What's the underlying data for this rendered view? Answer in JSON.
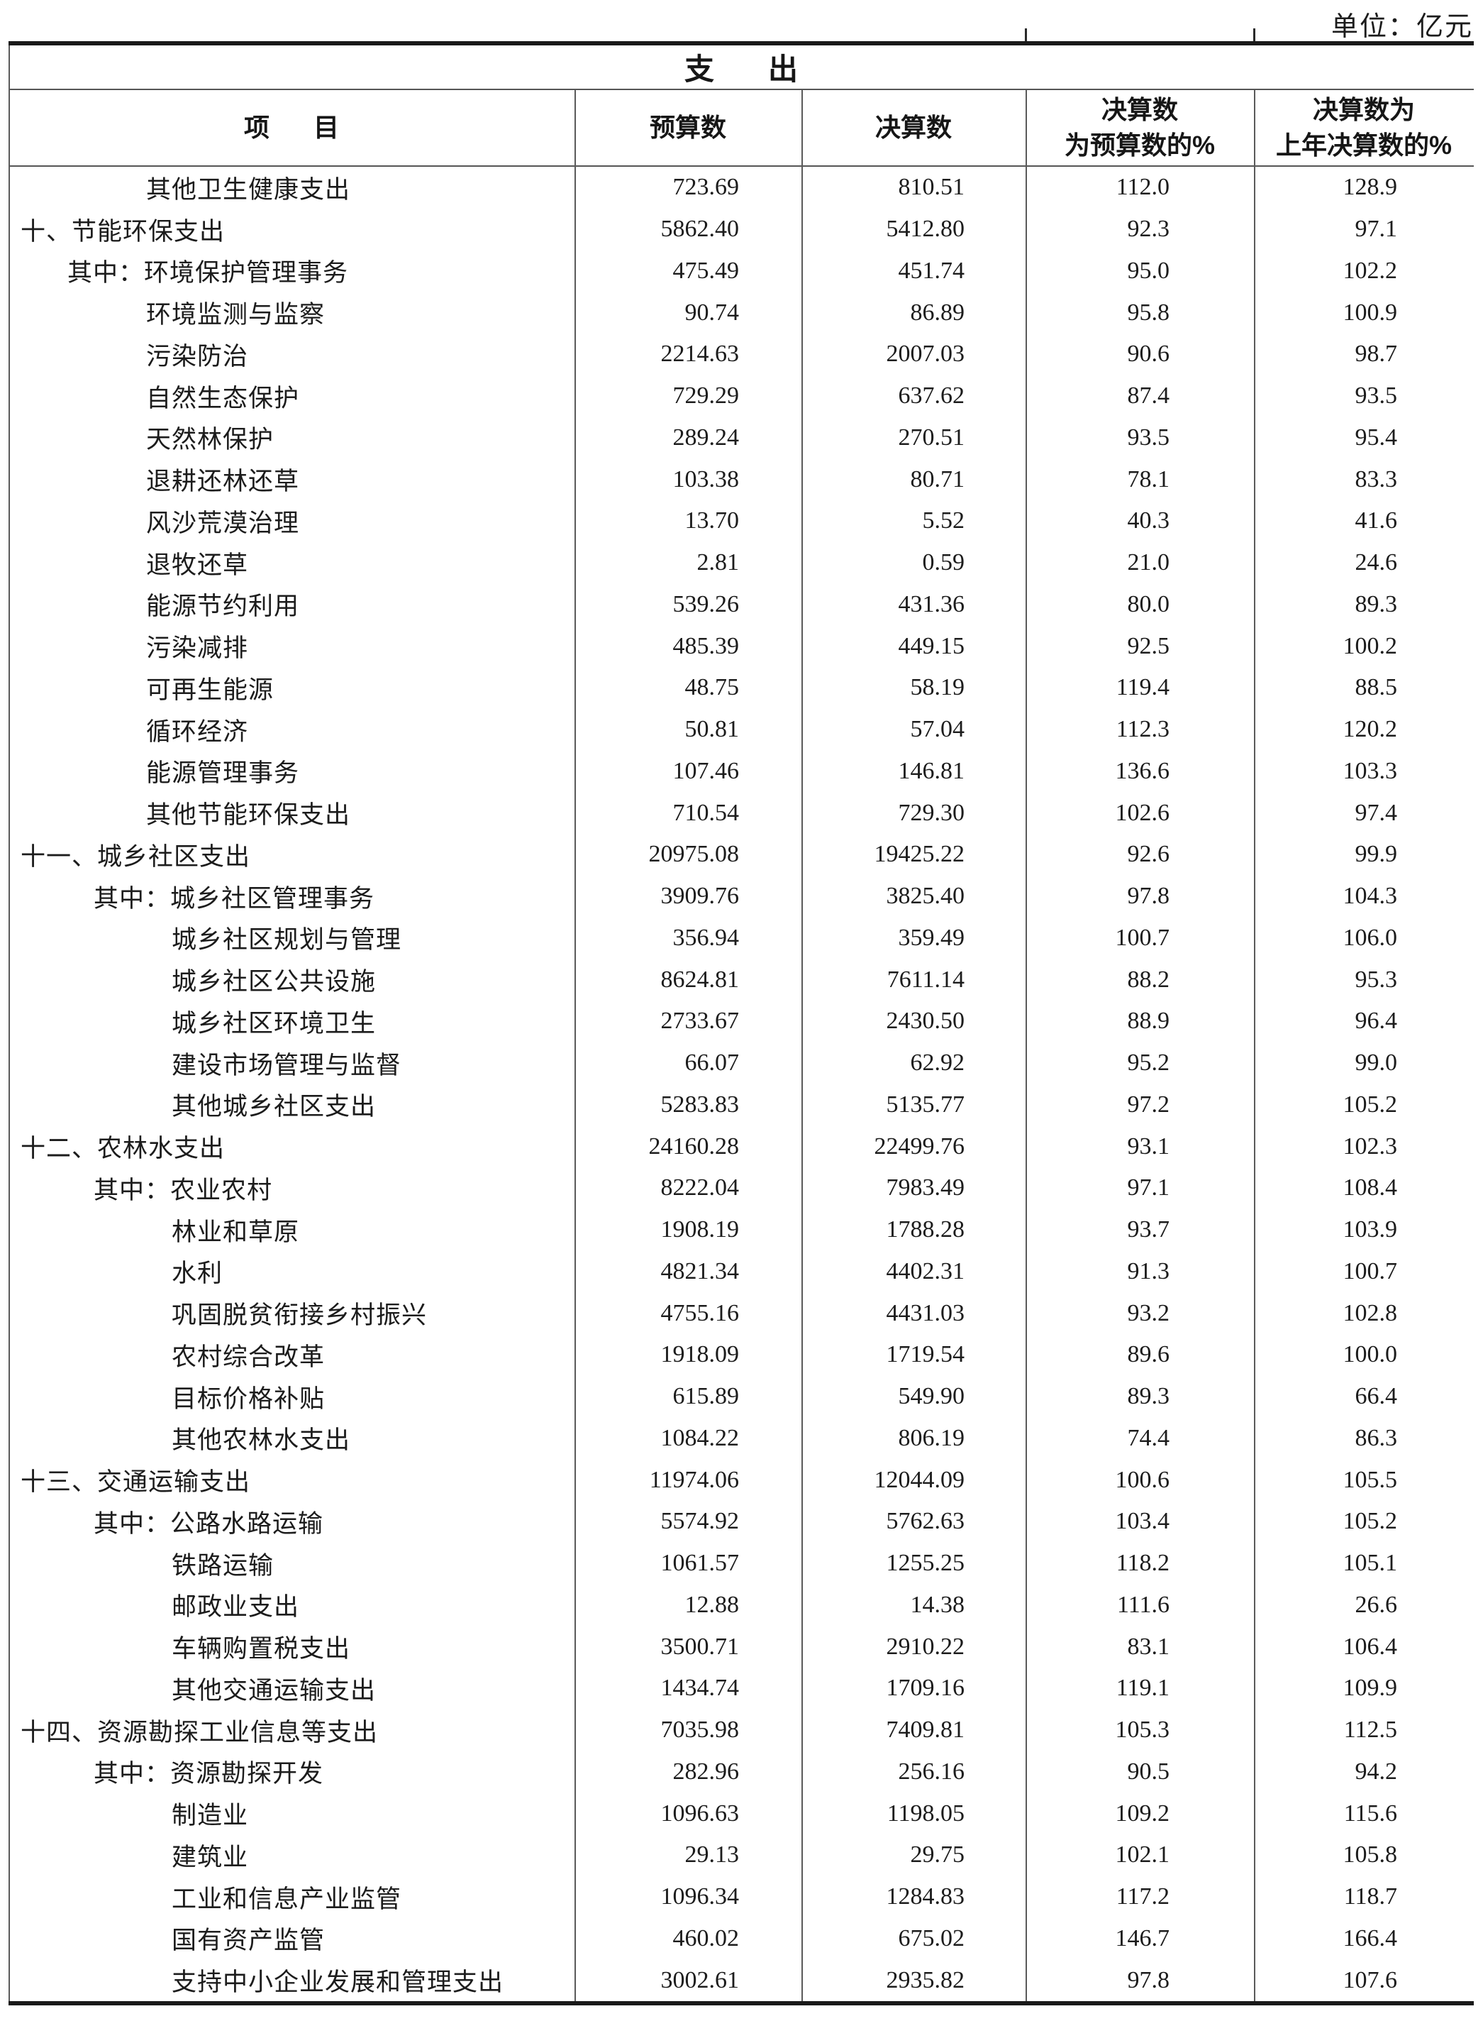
{
  "unit_label": "单位：亿元",
  "title": "支出",
  "title_chars": [
    "支",
    "出"
  ],
  "header": {
    "item_chars": [
      "项",
      "目"
    ],
    "col_budget": "预算数",
    "col_final": "决算数",
    "col_pct_budget": {
      "l1": "决算数",
      "l2": "为预算数的%"
    },
    "col_pct_prev": {
      "l1": "决算数为",
      "l2": "上年决算数的%"
    }
  },
  "colors": {
    "text": "#1c1c1c",
    "rule_thick": "#191919",
    "rule_thin": "#555555",
    "background": "#ffffff"
  },
  "rows": [
    {
      "label": "其他卫生健康支出",
      "indent": "sa",
      "budget": "723.69",
      "final": "810.51",
      "pct_budget": "112.0",
      "pct_prev": "128.9"
    },
    {
      "label": "十、节能环保支出",
      "indent": "l0",
      "budget": "5862.40",
      "final": "5412.80",
      "pct_budget": "92.3",
      "pct_prev": "97.1"
    },
    {
      "label": "其中：环境保护管理事务",
      "indent": "qa",
      "budget": "475.49",
      "final": "451.74",
      "pct_budget": "95.0",
      "pct_prev": "102.2"
    },
    {
      "label": "环境监测与监察",
      "indent": "sa",
      "budget": "90.74",
      "final": "86.89",
      "pct_budget": "95.8",
      "pct_prev": "100.9"
    },
    {
      "label": "污染防治",
      "indent": "sa",
      "budget": "2214.63",
      "final": "2007.03",
      "pct_budget": "90.6",
      "pct_prev": "98.7"
    },
    {
      "label": "自然生态保护",
      "indent": "sa",
      "budget": "729.29",
      "final": "637.62",
      "pct_budget": "87.4",
      "pct_prev": "93.5"
    },
    {
      "label": "天然林保护",
      "indent": "sa",
      "budget": "289.24",
      "final": "270.51",
      "pct_budget": "93.5",
      "pct_prev": "95.4"
    },
    {
      "label": "退耕还林还草",
      "indent": "sa",
      "budget": "103.38",
      "final": "80.71",
      "pct_budget": "78.1",
      "pct_prev": "83.3"
    },
    {
      "label": "风沙荒漠治理",
      "indent": "sa",
      "budget": "13.70",
      "final": "5.52",
      "pct_budget": "40.3",
      "pct_prev": "41.6"
    },
    {
      "label": "退牧还草",
      "indent": "sa",
      "budget": "2.81",
      "final": "0.59",
      "pct_budget": "21.0",
      "pct_prev": "24.6"
    },
    {
      "label": "能源节约利用",
      "indent": "sa",
      "budget": "539.26",
      "final": "431.36",
      "pct_budget": "80.0",
      "pct_prev": "89.3"
    },
    {
      "label": "污染减排",
      "indent": "sa",
      "budget": "485.39",
      "final": "449.15",
      "pct_budget": "92.5",
      "pct_prev": "100.2"
    },
    {
      "label": "可再生能源",
      "indent": "sa",
      "budget": "48.75",
      "final": "58.19",
      "pct_budget": "119.4",
      "pct_prev": "88.5"
    },
    {
      "label": "循环经济",
      "indent": "sa",
      "budget": "50.81",
      "final": "57.04",
      "pct_budget": "112.3",
      "pct_prev": "120.2"
    },
    {
      "label": "能源管理事务",
      "indent": "sa",
      "budget": "107.46",
      "final": "146.81",
      "pct_budget": "136.6",
      "pct_prev": "103.3"
    },
    {
      "label": "其他节能环保支出",
      "indent": "sa",
      "budget": "710.54",
      "final": "729.30",
      "pct_budget": "102.6",
      "pct_prev": "97.4"
    },
    {
      "label": "十一、城乡社区支出",
      "indent": "l0",
      "budget": "20975.08",
      "final": "19425.22",
      "pct_budget": "92.6",
      "pct_prev": "99.9"
    },
    {
      "label": "其中：城乡社区管理事务",
      "indent": "qb",
      "budget": "3909.76",
      "final": "3825.40",
      "pct_budget": "97.8",
      "pct_prev": "104.3"
    },
    {
      "label": "城乡社区规划与管理",
      "indent": "sb",
      "budget": "356.94",
      "final": "359.49",
      "pct_budget": "100.7",
      "pct_prev": "106.0"
    },
    {
      "label": "城乡社区公共设施",
      "indent": "sb",
      "budget": "8624.81",
      "final": "7611.14",
      "pct_budget": "88.2",
      "pct_prev": "95.3"
    },
    {
      "label": "城乡社区环境卫生",
      "indent": "sb",
      "budget": "2733.67",
      "final": "2430.50",
      "pct_budget": "88.9",
      "pct_prev": "96.4"
    },
    {
      "label": "建设市场管理与监督",
      "indent": "sb",
      "budget": "66.07",
      "final": "62.92",
      "pct_budget": "95.2",
      "pct_prev": "99.0"
    },
    {
      "label": "其他城乡社区支出",
      "indent": "sb",
      "budget": "5283.83",
      "final": "5135.77",
      "pct_budget": "97.2",
      "pct_prev": "105.2"
    },
    {
      "label": "十二、农林水支出",
      "indent": "l0",
      "budget": "24160.28",
      "final": "22499.76",
      "pct_budget": "93.1",
      "pct_prev": "102.3"
    },
    {
      "label": "其中：农业农村",
      "indent": "qb",
      "budget": "8222.04",
      "final": "7983.49",
      "pct_budget": "97.1",
      "pct_prev": "108.4"
    },
    {
      "label": "林业和草原",
      "indent": "sb",
      "budget": "1908.19",
      "final": "1788.28",
      "pct_budget": "93.7",
      "pct_prev": "103.9"
    },
    {
      "label": "水利",
      "indent": "sb",
      "budget": "4821.34",
      "final": "4402.31",
      "pct_budget": "91.3",
      "pct_prev": "100.7"
    },
    {
      "label": "巩固脱贫衔接乡村振兴",
      "indent": "sb",
      "budget": "4755.16",
      "final": "4431.03",
      "pct_budget": "93.2",
      "pct_prev": "102.8"
    },
    {
      "label": "农村综合改革",
      "indent": "sb",
      "budget": "1918.09",
      "final": "1719.54",
      "pct_budget": "89.6",
      "pct_prev": "100.0"
    },
    {
      "label": "目标价格补贴",
      "indent": "sb",
      "budget": "615.89",
      "final": "549.90",
      "pct_budget": "89.3",
      "pct_prev": "66.4"
    },
    {
      "label": "其他农林水支出",
      "indent": "sb",
      "budget": "1084.22",
      "final": "806.19",
      "pct_budget": "74.4",
      "pct_prev": "86.3"
    },
    {
      "label": "十三、交通运输支出",
      "indent": "l0",
      "budget": "11974.06",
      "final": "12044.09",
      "pct_budget": "100.6",
      "pct_prev": "105.5"
    },
    {
      "label": "其中：公路水路运输",
      "indent": "qb",
      "budget": "5574.92",
      "final": "5762.63",
      "pct_budget": "103.4",
      "pct_prev": "105.2"
    },
    {
      "label": "铁路运输",
      "indent": "sb",
      "budget": "1061.57",
      "final": "1255.25",
      "pct_budget": "118.2",
      "pct_prev": "105.1"
    },
    {
      "label": "邮政业支出",
      "indent": "sb",
      "budget": "12.88",
      "final": "14.38",
      "pct_budget": "111.6",
      "pct_prev": "26.6"
    },
    {
      "label": "车辆购置税支出",
      "indent": "sb",
      "budget": "3500.71",
      "final": "2910.22",
      "pct_budget": "83.1",
      "pct_prev": "106.4"
    },
    {
      "label": "其他交通运输支出",
      "indent": "sb",
      "budget": "1434.74",
      "final": "1709.16",
      "pct_budget": "119.1",
      "pct_prev": "109.9"
    },
    {
      "label": "十四、资源勘探工业信息等支出",
      "indent": "l0",
      "budget": "7035.98",
      "final": "7409.81",
      "pct_budget": "105.3",
      "pct_prev": "112.5"
    },
    {
      "label": "其中：资源勘探开发",
      "indent": "qb",
      "budget": "282.96",
      "final": "256.16",
      "pct_budget": "90.5",
      "pct_prev": "94.2"
    },
    {
      "label": "制造业",
      "indent": "sb",
      "budget": "1096.63",
      "final": "1198.05",
      "pct_budget": "109.2",
      "pct_prev": "115.6"
    },
    {
      "label": "建筑业",
      "indent": "sb",
      "budget": "29.13",
      "final": "29.75",
      "pct_budget": "102.1",
      "pct_prev": "105.8"
    },
    {
      "label": "工业和信息产业监管",
      "indent": "sb",
      "budget": "1096.34",
      "final": "1284.83",
      "pct_budget": "117.2",
      "pct_prev": "118.7"
    },
    {
      "label": "国有资产监管",
      "indent": "sb",
      "budget": "460.02",
      "final": "675.02",
      "pct_budget": "146.7",
      "pct_prev": "166.4"
    },
    {
      "label": "支持中小企业发展和管理支出",
      "indent": "sb",
      "budget": "3002.61",
      "final": "2935.82",
      "pct_budget": "97.8",
      "pct_prev": "107.6"
    }
  ]
}
